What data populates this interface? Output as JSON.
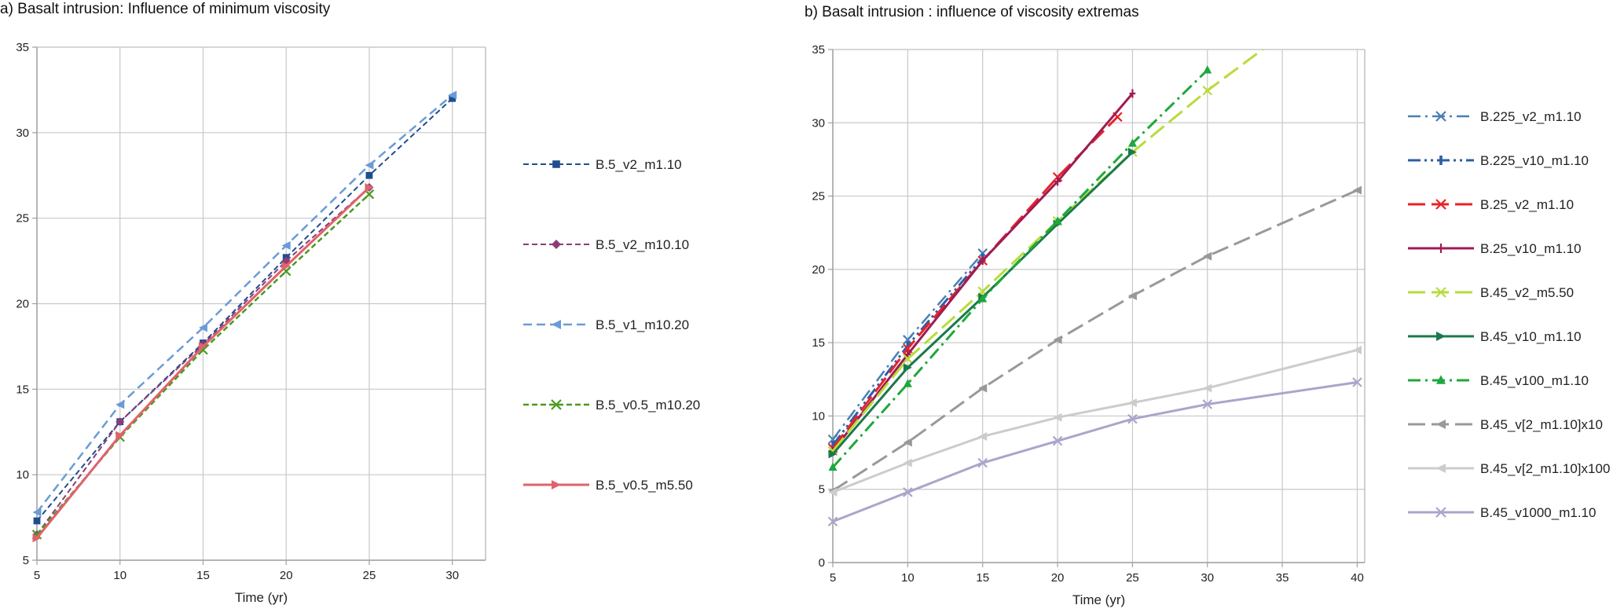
{
  "chart_data": [
    {
      "type": "line",
      "title": "a) Basalt intrusion: Influence of minimum viscosity",
      "xlabel": "Time (yr)",
      "ylabel": "",
      "xlim": [
        5,
        32
      ],
      "ylim": [
        5,
        35
      ],
      "xticks": [
        5,
        10,
        15,
        20,
        25,
        30
      ],
      "yticks": [
        5,
        10,
        15,
        20,
        25,
        30,
        35
      ],
      "grid": true,
      "legend_position": "right",
      "series": [
        {
          "name": "B.5_v2_m1.10",
          "color": "#1f4e8c",
          "dash": "short-dash",
          "marker": "square",
          "width": 2,
          "x": [
            5,
            10,
            15,
            20,
            25,
            30
          ],
          "y": [
            7.3,
            13.1,
            17.7,
            22.7,
            27.5,
            32.0
          ]
        },
        {
          "name": "B.5_v2_m10.10",
          "color": "#8e3b78",
          "dash": "short-dash",
          "marker": "diamond",
          "width": 2,
          "x": [
            5,
            10,
            15,
            20,
            25
          ],
          "y": [
            6.5,
            13.1,
            17.6,
            22.5,
            26.8
          ]
        },
        {
          "name": "B.5_v1_m10.20",
          "color": "#6a9bd6",
          "dash": "dash",
          "marker": "triangle-left",
          "width": 2.5,
          "x": [
            5,
            10,
            15,
            20,
            25,
            30
          ],
          "y": [
            7.8,
            14.1,
            18.6,
            23.4,
            28.1,
            32.2
          ]
        },
        {
          "name": "B.5_v0.5_m10.20",
          "color": "#4a9a1e",
          "dash": "short-dash",
          "marker": "x",
          "width": 2.5,
          "x": [
            5,
            10,
            15,
            20,
            25
          ],
          "y": [
            6.5,
            12.2,
            17.3,
            21.9,
            26.4
          ]
        },
        {
          "name": "B.5_v0.5_m5.50",
          "color": "#e0626b",
          "dash": "solid",
          "marker": "triangle-right",
          "width": 3,
          "x": [
            5,
            10,
            15,
            20,
            25
          ],
          "y": [
            6.3,
            12.3,
            17.5,
            22.2,
            26.8
          ]
        }
      ]
    },
    {
      "type": "line",
      "title": "b) Basalt intrusion : influence of viscosity extremas",
      "xlabel": "Time (yr)",
      "ylabel": "",
      "xlim": [
        5,
        40.5
      ],
      "ylim": [
        0,
        35
      ],
      "xticks": [
        5,
        10,
        15,
        20,
        25,
        30,
        35,
        40
      ],
      "yticks": [
        0,
        5,
        10,
        15,
        20,
        25,
        30,
        35
      ],
      "grid": true,
      "legend_position": "right",
      "series": [
        {
          "name": "B.225_v2_m1.10",
          "color": "#4a7fb5",
          "dash": "dash-dot",
          "marker": "x",
          "width": 2.5,
          "x": [
            5,
            10,
            15
          ],
          "y": [
            8.4,
            15.2,
            21.1
          ]
        },
        {
          "name": "B.225_v10_m1.10",
          "color": "#2a5fa6",
          "dash": "dash-dot-dot",
          "marker": "vbar",
          "width": 3,
          "x": [
            5,
            10,
            15
          ],
          "y": [
            8.0,
            14.8,
            20.8
          ]
        },
        {
          "name": "B.25_v2_m1.10",
          "color": "#e8232a",
          "dash": "long-dash",
          "marker": "x",
          "width": 3,
          "x": [
            5,
            10,
            15,
            20,
            24
          ],
          "y": [
            7.8,
            14.6,
            20.6,
            26.3,
            30.4
          ]
        },
        {
          "name": "B.25_v10_m1.10",
          "color": "#9e1c54",
          "dash": "solid",
          "marker": "plus",
          "width": 3,
          "x": [
            5,
            10,
            15,
            20,
            25
          ],
          "y": [
            7.6,
            14.2,
            20.6,
            26.0,
            32.0
          ]
        },
        {
          "name": "B.45_v2_m5.50",
          "color": "#b8dc3a",
          "dash": "long-dash",
          "marker": "x",
          "width": 3,
          "x": [
            5,
            10,
            15,
            20,
            25,
            30,
            35
          ],
          "y": [
            7.6,
            13.9,
            18.5,
            23.3,
            28.0,
            32.2,
            36.0
          ]
        },
        {
          "name": "B.45_v10_m1.10",
          "color": "#1a7a4c",
          "dash": "solid",
          "marker": "triangle-right",
          "width": 3,
          "x": [
            5,
            10,
            15,
            20,
            25
          ],
          "y": [
            7.4,
            13.3,
            18.1,
            23.1,
            28.0
          ]
        },
        {
          "name": "B.45_v100_m1.10",
          "color": "#1ea83c",
          "dash": "dash-dot",
          "marker": "triangle-up",
          "width": 3,
          "x": [
            5,
            10,
            15,
            20,
            25,
            30
          ],
          "y": [
            6.5,
            12.2,
            18.0,
            23.3,
            28.6,
            33.6
          ]
        },
        {
          "name": "B.45_v[2_m1.10]x10",
          "color": "#999999",
          "dash": "long-dash",
          "marker": "triangle-left",
          "width": 3,
          "x": [
            5,
            10,
            15,
            20,
            25,
            30,
            40
          ],
          "y": [
            4.9,
            8.2,
            11.9,
            15.2,
            18.2,
            20.9,
            25.4
          ]
        },
        {
          "name": "B.45_v[2_m1.10]x100",
          "color": "#cccccc",
          "dash": "solid",
          "marker": "triangle-left",
          "width": 3,
          "x": [
            5,
            10,
            15,
            20,
            25,
            30,
            40
          ],
          "y": [
            4.8,
            6.8,
            8.6,
            9.9,
            10.9,
            11.9,
            14.5
          ]
        },
        {
          "name": "B.45_v1000_m1.10",
          "color": "#aaa5ca",
          "dash": "solid",
          "marker": "x",
          "width": 3,
          "x": [
            5,
            10,
            15,
            20,
            25,
            30,
            40
          ],
          "y": [
            2.8,
            4.8,
            6.8,
            8.3,
            9.8,
            10.8,
            12.3
          ]
        }
      ]
    }
  ]
}
